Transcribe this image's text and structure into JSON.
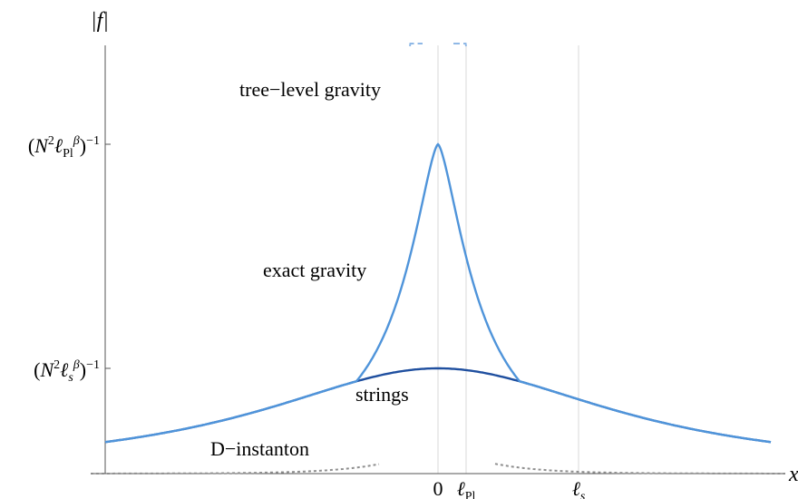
{
  "chart_data": {
    "type": "line",
    "y_axis_title": "|f|",
    "x_axis_title": "x",
    "x_ticks": [
      "0",
      "ℓPl",
      "ℓs"
    ],
    "y_ticks": [
      "(N²ℓPlβ)⁻¹",
      "(N²ℓsβ)⁻¹"
    ],
    "grid": "vertical lines at x ticks",
    "series": [
      {
        "name": "tree−level gravity",
        "style": "dashed",
        "color": "#8fb8e6"
      },
      {
        "name": "exact gravity",
        "style": "solid",
        "color": "#4f94da"
      },
      {
        "name": "strings",
        "style": "solid",
        "color": "#1f4f9f"
      },
      {
        "name": "D−instanton",
        "style": "dotted",
        "color": "#8f8f8f"
      }
    ],
    "annotations": [
      "tree−level gravity",
      "exact gravity",
      "strings",
      "D−instanton"
    ]
  }
}
